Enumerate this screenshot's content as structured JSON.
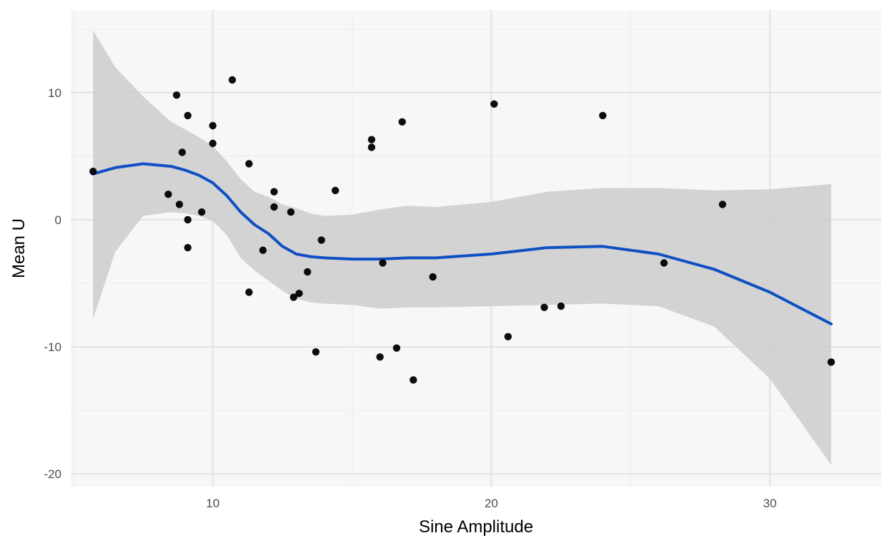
{
  "chart_data": {
    "type": "scatter",
    "title": "",
    "xlabel": "Sine Amplitude",
    "ylabel": "Mean U",
    "xlim": [
      4.9,
      34.0
    ],
    "ylim": [
      -21.0,
      16.5
    ],
    "x_ticks": [
      10,
      20,
      30
    ],
    "x_tick_labels": [
      "10",
      "20",
      "30"
    ],
    "x_minor_ticks": [
      5,
      15,
      25
    ],
    "y_ticks": [
      -20,
      -10,
      0,
      10
    ],
    "y_tick_labels": [
      "-20",
      "-10",
      "0",
      "10"
    ],
    "y_minor_ticks": [
      -15,
      -5,
      5,
      15
    ],
    "grid": true,
    "legend": "none",
    "points": [
      {
        "x": 5.7,
        "y": 3.8
      },
      {
        "x": 8.7,
        "y": 9.8
      },
      {
        "x": 10.7,
        "y": 11.0
      },
      {
        "x": 9.1,
        "y": 8.2
      },
      {
        "x": 10.0,
        "y": 7.4
      },
      {
        "x": 8.9,
        "y": 5.3
      },
      {
        "x": 10.0,
        "y": 6.0
      },
      {
        "x": 11.3,
        "y": 4.4
      },
      {
        "x": 8.4,
        "y": 2.0
      },
      {
        "x": 8.8,
        "y": 1.2
      },
      {
        "x": 9.1,
        "y": 0.0
      },
      {
        "x": 9.6,
        "y": 0.6
      },
      {
        "x": 9.1,
        "y": -2.2
      },
      {
        "x": 12.2,
        "y": 2.2
      },
      {
        "x": 12.2,
        "y": 1.0
      },
      {
        "x": 12.8,
        "y": 0.6
      },
      {
        "x": 11.8,
        "y": -2.4
      },
      {
        "x": 11.3,
        "y": -5.7
      },
      {
        "x": 12.9,
        "y": -6.1
      },
      {
        "x": 13.1,
        "y": -5.8
      },
      {
        "x": 13.4,
        "y": -4.1
      },
      {
        "x": 13.9,
        "y": -1.6
      },
      {
        "x": 13.7,
        "y": -10.4
      },
      {
        "x": 14.4,
        "y": 2.3
      },
      {
        "x": 15.7,
        "y": 6.3
      },
      {
        "x": 15.7,
        "y": 5.7
      },
      {
        "x": 16.8,
        "y": 7.7
      },
      {
        "x": 16.1,
        "y": -3.4
      },
      {
        "x": 16.0,
        "y": -10.8
      },
      {
        "x": 16.6,
        "y": -10.1
      },
      {
        "x": 17.2,
        "y": -12.6
      },
      {
        "x": 17.9,
        "y": -4.5
      },
      {
        "x": 20.1,
        "y": 9.1
      },
      {
        "x": 20.6,
        "y": -9.2
      },
      {
        "x": 21.9,
        "y": -6.9
      },
      {
        "x": 22.5,
        "y": -6.8
      },
      {
        "x": 24.0,
        "y": 8.2
      },
      {
        "x": 26.2,
        "y": -3.4
      },
      {
        "x": 28.3,
        "y": 1.2
      },
      {
        "x": 32.2,
        "y": -11.2
      }
    ],
    "smooth_line": {
      "color": "#0f4fc4",
      "x": [
        5.7,
        6.5,
        7.5,
        8.5,
        9.0,
        9.5,
        10.0,
        10.5,
        11.0,
        11.5,
        12.0,
        12.5,
        13.0,
        13.5,
        14.0,
        15.0,
        16.0,
        17.0,
        18.0,
        20.0,
        22.0,
        24.0,
        26.0,
        28.0,
        30.0,
        32.2
      ],
      "y": [
        3.6,
        4.1,
        4.4,
        4.2,
        3.9,
        3.5,
        2.9,
        1.9,
        0.6,
        -0.4,
        -1.1,
        -2.1,
        -2.7,
        -2.9,
        -3.0,
        -3.1,
        -3.1,
        -3.0,
        -3.0,
        -2.7,
        -2.2,
        -2.1,
        -2.7,
        -3.9,
        -5.7,
        -8.2
      ]
    },
    "confidence_band": {
      "color": "#cccccc",
      "x": [
        5.7,
        6.5,
        7.5,
        8.5,
        9.0,
        9.5,
        10.0,
        10.5,
        11.0,
        11.5,
        12.0,
        12.5,
        13.0,
        13.5,
        14.0,
        15.0,
        16.0,
        17.0,
        18.0,
        20.0,
        22.0,
        24.0,
        26.0,
        28.0,
        30.0,
        32.2
      ],
      "upper": [
        14.9,
        12.0,
        9.7,
        7.7,
        7.1,
        6.5,
        5.8,
        4.6,
        3.2,
        2.2,
        1.8,
        1.2,
        0.9,
        0.5,
        0.3,
        0.4,
        0.8,
        1.1,
        1.0,
        1.4,
        2.2,
        2.5,
        2.5,
        2.3,
        2.4,
        2.8
      ],
      "lower": [
        -7.8,
        -2.5,
        0.3,
        0.6,
        0.5,
        0.3,
        -0.1,
        -1.2,
        -3.0,
        -4.0,
        -4.8,
        -5.6,
        -6.2,
        -6.5,
        -6.6,
        -6.7,
        -7.0,
        -6.9,
        -6.9,
        -6.8,
        -6.7,
        -6.6,
        -6.8,
        -8.4,
        -12.5,
        -19.3
      ]
    }
  }
}
